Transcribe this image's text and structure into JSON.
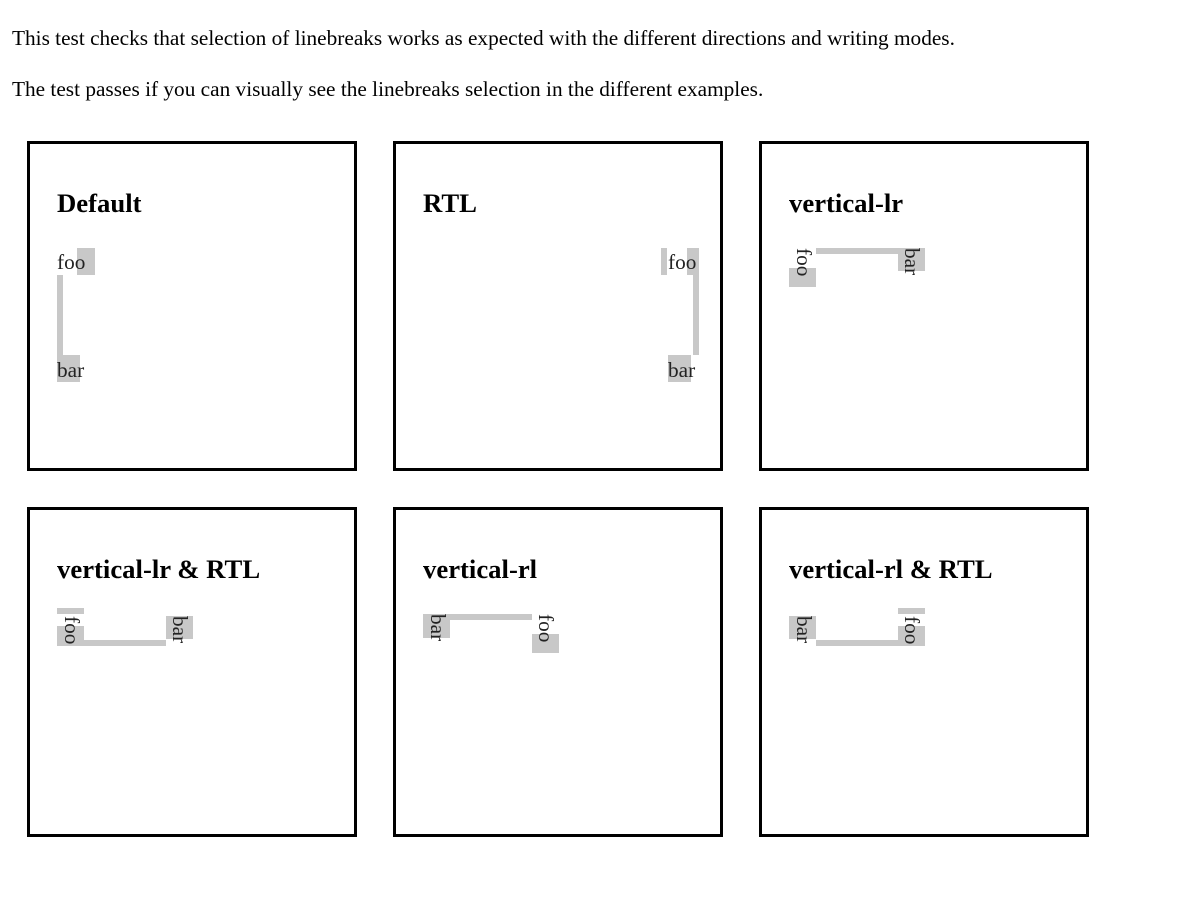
{
  "intro": {
    "line1": "This test checks that selection of linebreaks works as expected with the different directions and writing modes.",
    "line2": "The test passes if you can visually see the linebreaks selection in the different examples."
  },
  "examples": [
    {
      "title": "Default",
      "word1": "foo",
      "word2": "bar"
    },
    {
      "title": "RTL",
      "word1": "foo",
      "word2": "bar"
    },
    {
      "title": "vertical-lr",
      "word1": "foo",
      "word2": "bar"
    },
    {
      "title": "vertical-lr & RTL",
      "word1": "foo",
      "word2": "bar"
    },
    {
      "title": "vertical-rl",
      "word1": "foo",
      "word2": "bar"
    },
    {
      "title": "vertical-rl & RTL",
      "word1": "foo",
      "word2": "bar"
    }
  ],
  "colors": {
    "selection": "#c8c8c8",
    "border": "#000000",
    "text": "#222222"
  }
}
